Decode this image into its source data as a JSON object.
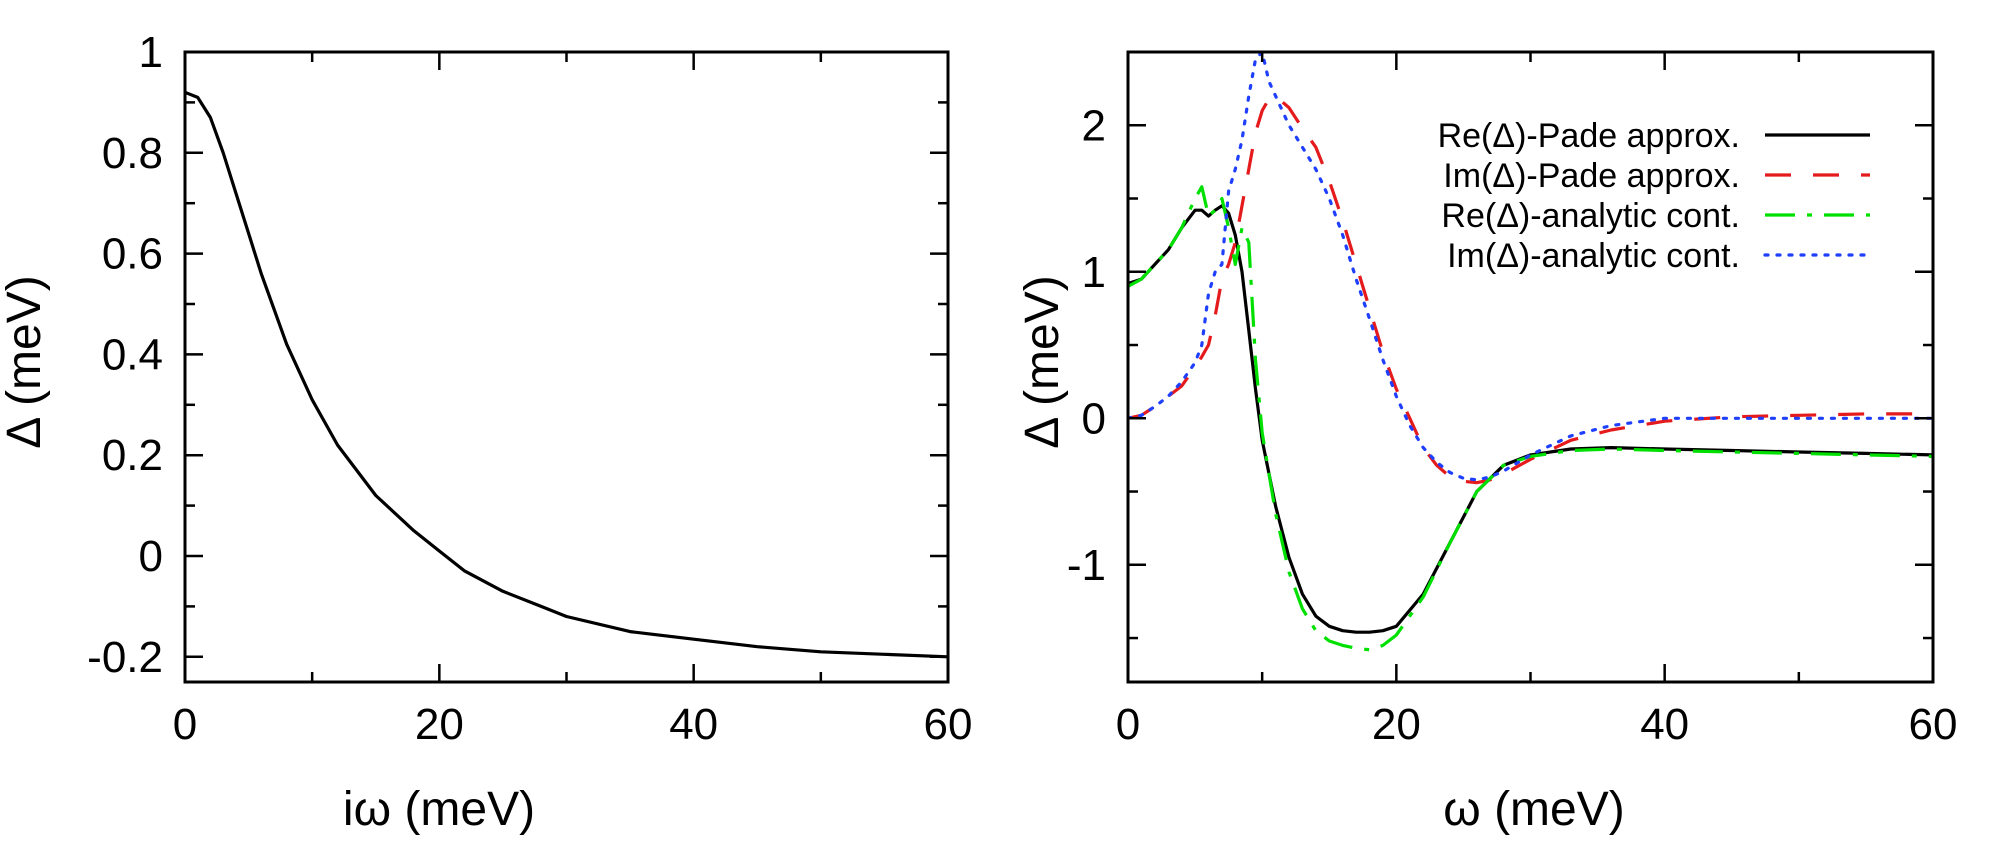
{
  "chart_data": [
    {
      "type": "line",
      "title": "",
      "xlabel": "iω (meV)",
      "ylabel": "Δ (meV)",
      "xlim": [
        0,
        60
      ],
      "ylim": [
        -0.25,
        1.0
      ],
      "xticks": [
        0,
        20,
        40,
        60
      ],
      "xtick_labels": [
        "0",
        "20",
        "40",
        "60"
      ],
      "yticks": [
        -0.2,
        0,
        0.2,
        0.4,
        0.6,
        0.8,
        1
      ],
      "ytick_labels": [
        "-0.2",
        "0",
        "0.2",
        "0.4",
        "0.6",
        "0.8",
        "1"
      ],
      "grid": false,
      "series": [
        {
          "color": "#000000",
          "dash": "solid",
          "x": [
            0,
            1,
            2,
            3,
            4,
            5,
            6,
            8,
            10,
            12,
            15,
            18,
            20,
            22,
            25,
            28,
            30,
            35,
            40,
            45,
            50,
            55,
            60
          ],
          "y": [
            0.92,
            0.91,
            0.87,
            0.8,
            0.72,
            0.64,
            0.56,
            0.42,
            0.31,
            0.22,
            0.12,
            0.05,
            0.01,
            -0.03,
            -0.07,
            -0.1,
            -0.12,
            -0.15,
            -0.165,
            -0.18,
            -0.19,
            -0.195,
            -0.2
          ]
        }
      ]
    },
    {
      "type": "line",
      "title": "",
      "xlabel": "ω (meV)",
      "ylabel": "Δ (meV)",
      "xlim": [
        0,
        60
      ],
      "ylim": [
        -1.8,
        2.5
      ],
      "xticks": [
        0,
        20,
        40,
        60
      ],
      "xtick_labels": [
        "0",
        "20",
        "40",
        "60"
      ],
      "yticks": [
        -1,
        0,
        1,
        2
      ],
      "ytick_labels": [
        "-1",
        "0",
        "1",
        "2"
      ],
      "grid": false,
      "legend_position": "top-right",
      "series": [
        {
          "name": "Re(Δ)-Pade approx.",
          "color": "#000000",
          "dash": "solid",
          "x": [
            0,
            1,
            2,
            3,
            4,
            5,
            5.5,
            6,
            6.5,
            7,
            7.5,
            8,
            8.5,
            9,
            9.5,
            10,
            11,
            12,
            13,
            14,
            15,
            16,
            17,
            18,
            19,
            20,
            22,
            24,
            26,
            28,
            30,
            33,
            36,
            40,
            45,
            50,
            55,
            60
          ],
          "y": [
            0.92,
            0.95,
            1.05,
            1.15,
            1.3,
            1.42,
            1.42,
            1.38,
            1.42,
            1.45,
            1.4,
            1.25,
            1.0,
            0.6,
            0.2,
            -0.15,
            -0.6,
            -0.95,
            -1.2,
            -1.35,
            -1.42,
            -1.45,
            -1.46,
            -1.46,
            -1.45,
            -1.42,
            -1.2,
            -0.85,
            -0.5,
            -0.32,
            -0.25,
            -0.21,
            -0.2,
            -0.21,
            -0.22,
            -0.23,
            -0.24,
            -0.25
          ]
        },
        {
          "name": "Im(Δ)-Pade approx.",
          "color": "#e41a1c",
          "dash": "dashed",
          "x": [
            0,
            1,
            2,
            3,
            4,
            5,
            5.5,
            6,
            6.5,
            7,
            7.5,
            8,
            8.5,
            9,
            9.5,
            10,
            10.5,
            11,
            12,
            13,
            14,
            15,
            16,
            17,
            18,
            19,
            20,
            21,
            22,
            23,
            24,
            25,
            26,
            27,
            28,
            30,
            33,
            36,
            40,
            45,
            50,
            55,
            60
          ],
          "y": [
            0.0,
            0.02,
            0.08,
            0.15,
            0.22,
            0.35,
            0.42,
            0.5,
            0.7,
            0.95,
            1.05,
            1.2,
            1.45,
            1.7,
            1.95,
            2.1,
            2.18,
            2.2,
            2.12,
            1.98,
            1.85,
            1.62,
            1.35,
            1.05,
            0.75,
            0.45,
            0.2,
            0.0,
            -0.2,
            -0.32,
            -0.4,
            -0.43,
            -0.44,
            -0.42,
            -0.38,
            -0.28,
            -0.15,
            -0.08,
            -0.02,
            0.01,
            0.02,
            0.03,
            0.03
          ]
        },
        {
          "name": "Re(Δ)-analytic cont.",
          "color": "#00e000",
          "dash": "dashdot",
          "x": [
            0,
            1,
            2,
            3,
            4,
            5,
            5.5,
            6,
            6.5,
            7,
            7.5,
            8,
            8.5,
            9,
            9.5,
            10,
            11,
            12,
            13,
            14,
            15,
            16,
            17,
            18,
            19,
            20,
            22,
            24,
            26,
            28,
            30,
            33,
            36,
            40,
            45,
            50,
            55,
            60
          ],
          "y": [
            0.9,
            0.95,
            1.05,
            1.15,
            1.3,
            1.5,
            1.58,
            1.38,
            1.42,
            1.5,
            1.3,
            1.05,
            1.3,
            1.2,
            0.4,
            -0.1,
            -0.65,
            -1.05,
            -1.3,
            -1.45,
            -1.52,
            -1.55,
            -1.57,
            -1.58,
            -1.55,
            -1.48,
            -1.22,
            -0.85,
            -0.5,
            -0.32,
            -0.26,
            -0.22,
            -0.21,
            -0.22,
            -0.23,
            -0.24,
            -0.25,
            -0.26
          ]
        },
        {
          "name": "Im(Δ)-analytic cont.",
          "color": "#1f3fff",
          "dash": "dotted",
          "x": [
            0,
            1,
            2,
            3,
            4,
            5,
            5.5,
            6,
            6.5,
            7,
            7.5,
            8,
            8.5,
            9,
            9.5,
            10,
            10.5,
            11,
            12,
            13,
            14,
            15,
            16,
            17,
            18,
            19,
            20,
            21,
            22,
            23,
            24,
            25,
            26,
            27,
            28,
            30,
            33,
            36,
            40,
            45,
            50,
            55,
            60
          ],
          "y": [
            0.0,
            0.02,
            0.08,
            0.15,
            0.25,
            0.38,
            0.5,
            0.85,
            1.0,
            1.05,
            1.55,
            1.7,
            1.9,
            2.2,
            2.45,
            2.5,
            2.3,
            2.2,
            2.0,
            1.85,
            1.7,
            1.5,
            1.25,
            0.95,
            0.68,
            0.4,
            0.15,
            -0.05,
            -0.2,
            -0.3,
            -0.37,
            -0.41,
            -0.42,
            -0.4,
            -0.36,
            -0.25,
            -0.12,
            -0.05,
            0.0,
            0.0,
            0.0,
            0.0,
            0.0
          ]
        }
      ]
    }
  ]
}
